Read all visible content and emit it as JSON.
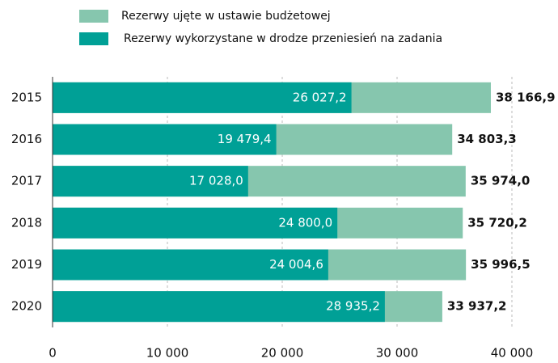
{
  "chart_data": {
    "type": "overlap_bar_h",
    "categories": [
      "2015",
      "2016",
      "2017",
      "2018",
      "2019",
      "2020"
    ],
    "series": [
      {
        "name": "Rezerwy ujęte w ustawie budżetowej",
        "color": "#86c6ae",
        "values": [
          38166.9,
          34803.3,
          35974.0,
          35720.2,
          35996.5,
          33937.2
        ],
        "value_labels": [
          "38 166,9",
          "34 803,3",
          "35 974,0",
          "35 720,2",
          "35 996,5",
          "33 937,2"
        ]
      },
      {
        "name": "Rezerwy wykorzystane w drodze przeniesień na zadania",
        "color": "#00a096",
        "values": [
          26027.2,
          19479.4,
          17028.0,
          24800.0,
          24004.6,
          28935.2
        ],
        "value_labels": [
          "26 027,2",
          "19 479,4",
          "17 028,0",
          "24 800,0",
          "24 004,6",
          "28 935,2"
        ]
      }
    ],
    "xlim": [
      0,
      40000
    ],
    "xticks": [
      0,
      {
        "value": 10000,
        "label": "10 000"
      },
      {
        "value": 20000,
        "label": "20 000"
      },
      {
        "value": 30000,
        "label": "30 000"
      },
      {
        "value": 40000,
        "label": "40 000"
      }
    ],
    "grid": true
  }
}
